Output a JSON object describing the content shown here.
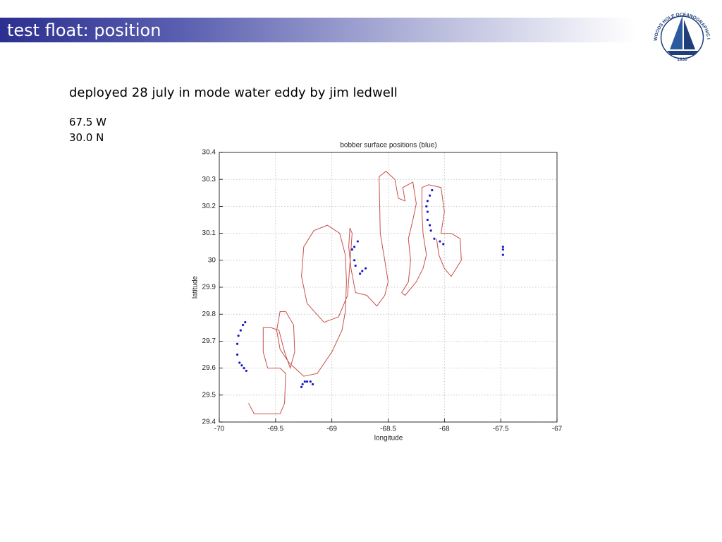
{
  "slide": {
    "title": "test float: position",
    "text": [
      "deployed 28 july in mode water eddy by jim ledwell",
      "67.5 W",
      "30.0 N"
    ]
  },
  "logo": {
    "name": "WOODS HOLE OCEANOGRAPHIC INSTITUTION",
    "year": "1930"
  },
  "chart_data": {
    "type": "scatter",
    "title": "bobber surface positions (blue)",
    "xlabel": "longitude",
    "ylabel": "latitude",
    "xlim": [
      -70,
      -67
    ],
    "ylim": [
      29.4,
      30.4
    ],
    "xticks": [
      -70,
      -69.5,
      -69,
      -68.5,
      -68,
      -67.5,
      -67
    ],
    "yticks": [
      29.4,
      29.5,
      29.6,
      29.7,
      29.8,
      29.9,
      30,
      30.1,
      30.2,
      30.3,
      30.4
    ],
    "grid": true,
    "series": [
      {
        "type": "line",
        "color": "#c8504a",
        "x": [
          -69.74,
          -69.69,
          -69.61,
          -69.46,
          -69.42,
          -69.41,
          -69.46,
          -69.57,
          -69.61,
          -69.61,
          -69.54,
          -69.47,
          -69.42,
          -69.37,
          -69.33,
          -69.34,
          -69.41,
          -69.46,
          -69.49,
          -69.46,
          -69.38,
          -69.25,
          -69.13,
          -69.0,
          -68.91,
          -68.88,
          -68.87,
          -68.88,
          -68.93,
          -69.04,
          -69.16,
          -69.25,
          -69.27,
          -69.22,
          -69.07,
          -68.94,
          -68.86,
          -68.82,
          -68.84,
          -68.85,
          -68.83,
          -68.79,
          -68.69,
          -68.6,
          -68.53,
          -68.5,
          -68.53,
          -68.57,
          -68.58,
          -68.52,
          -68.44,
          -68.41,
          -68.35,
          -68.37,
          -68.28,
          -68.25,
          -68.28,
          -68.32,
          -68.3,
          -68.32,
          -68.38,
          -68.35,
          -68.25,
          -68.19,
          -68.16,
          -68.19,
          -68.2,
          -68.2,
          -68.14,
          -68.03,
          -68.0,
          -68.03,
          -67.94,
          -67.86,
          -67.85,
          -67.94,
          -68.0,
          -68.05,
          -68.07
        ],
        "values": [
          29.47,
          29.43,
          29.43,
          29.43,
          29.47,
          29.58,
          29.6,
          29.6,
          29.66,
          29.75,
          29.75,
          29.74,
          29.66,
          29.6,
          29.66,
          29.76,
          29.81,
          29.81,
          29.74,
          29.67,
          29.62,
          29.57,
          29.58,
          29.66,
          29.74,
          29.81,
          29.92,
          30.02,
          30.1,
          30.13,
          30.11,
          30.05,
          29.94,
          29.84,
          29.77,
          29.79,
          29.87,
          30.1,
          30.12,
          30.05,
          29.97,
          29.88,
          29.87,
          29.83,
          29.87,
          29.92,
          30.0,
          30.1,
          30.31,
          30.33,
          30.3,
          30.23,
          30.22,
          30.27,
          30.29,
          30.21,
          30.15,
          30.08,
          30.0,
          29.92,
          29.88,
          29.87,
          29.92,
          29.97,
          30.02,
          30.1,
          30.18,
          30.27,
          30.28,
          30.27,
          30.18,
          30.1,
          30.1,
          30.08,
          30.0,
          29.94,
          29.97,
          30.02,
          30.08
        ]
      },
      {
        "type": "scatter",
        "color": "#1a1acc",
        "x": [
          -69.77,
          -69.79,
          -69.81,
          -69.83,
          -69.84,
          -69.84,
          -69.82,
          -69.8,
          -69.78,
          -69.76,
          -69.27,
          -69.24,
          -69.22,
          -69.19,
          -69.17,
          -69.26,
          -68.77,
          -68.8,
          -68.82,
          -68.8,
          -68.79,
          -68.75,
          -68.73,
          -68.7,
          -68.11,
          -68.13,
          -68.15,
          -68.16,
          -68.15,
          -68.15,
          -68.13,
          -68.12,
          -68.09,
          -68.04,
          -68.01,
          -67.48,
          -67.48,
          -67.48
        ],
        "values": [
          29.77,
          29.76,
          29.74,
          29.72,
          29.69,
          29.65,
          29.62,
          29.61,
          29.6,
          29.59,
          29.53,
          29.55,
          29.55,
          29.55,
          29.54,
          29.54,
          30.07,
          30.05,
          30.04,
          30.0,
          29.98,
          29.95,
          29.96,
          29.97,
          30.26,
          30.24,
          30.22,
          30.2,
          30.18,
          30.15,
          30.13,
          30.11,
          30.08,
          30.07,
          30.06,
          30.05,
          30.04,
          30.02
        ]
      }
    ]
  }
}
